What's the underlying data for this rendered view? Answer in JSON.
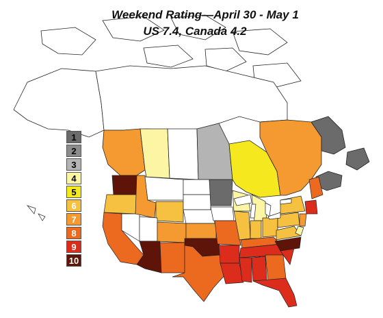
{
  "title": "Weekend Rating—April 30 - May 1",
  "subtitle": "US 7.4, Canada 4.2",
  "legend": [
    {
      "label": "1",
      "color": "#6b6b6b",
      "text_color": "#000000"
    },
    {
      "label": "2",
      "color": "#8c8c8c",
      "text_color": "#000000"
    },
    {
      "label": "3",
      "color": "#b4b4b4",
      "text_color": "#000000"
    },
    {
      "label": "4",
      "color": "#fcf6a4",
      "text_color": "#000000"
    },
    {
      "label": "5",
      "color": "#f6e81e",
      "text_color": "#000000"
    },
    {
      "label": "6",
      "color": "#f6c040",
      "text_color": "#ffffff"
    },
    {
      "label": "7",
      "color": "#f49a30",
      "text_color": "#ffffff"
    },
    {
      "label": "8",
      "color": "#ec6a20",
      "text_color": "#ffffff"
    },
    {
      "label": "9",
      "color": "#dc2c1c",
      "text_color": "#ffffff"
    },
    {
      "label": "10",
      "color": "#5e1408",
      "text_color": "#ffffff"
    }
  ]
}
